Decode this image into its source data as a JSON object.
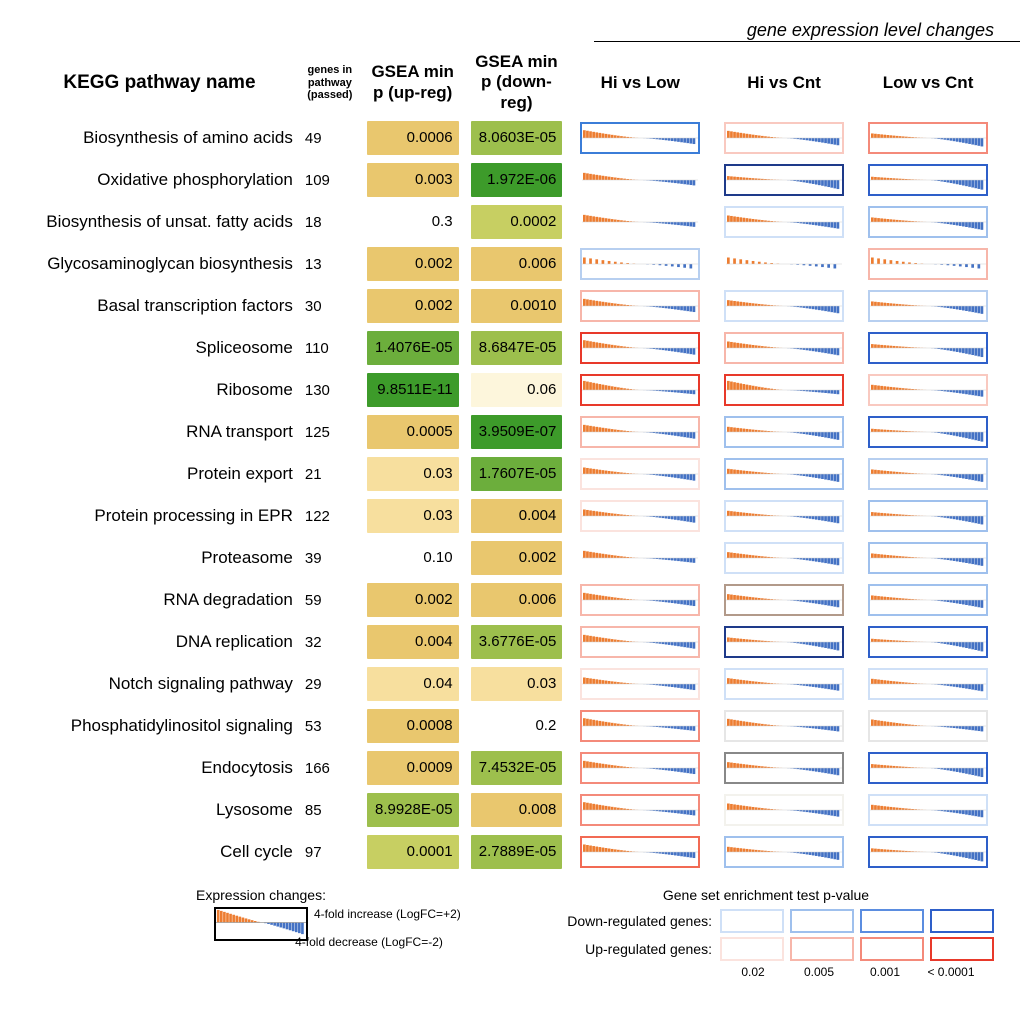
{
  "header_group": "gene expression level changes",
  "columns": {
    "name": "KEGG pathway name",
    "genes": "genes in pathway (passed)",
    "p_up": "GSEA min p (up-reg)",
    "p_down": "GSEA min p (down-reg)",
    "c1": "Hi vs Low",
    "c2": "Hi vs Cnt",
    "c3": "Low vs Cnt"
  },
  "heat_palette": {
    "0": "#ffffff",
    "1": "#fdf6dc",
    "2": "#f7df9e",
    "3": "#e9c76e",
    "4": "#c7cf62",
    "5": "#9dbf4d",
    "6": "#6cae3c",
    "7": "#3d9b2a"
  },
  "rows": [
    {
      "name": "Biosynthesis of amino acids",
      "genes": 49,
      "pu": "0.0006",
      "puH": 3,
      "pd": "8.0603E-05",
      "pdH": 5,
      "charts": [
        {
          "b": "#3b7dd8",
          "up": 0.6,
          "dn": 0.5
        },
        {
          "b": "#f9c9c0",
          "up": 0.55,
          "dn": 0.6
        },
        {
          "b": "#f48a7a",
          "up": 0.35,
          "dn": 0.7
        }
      ]
    },
    {
      "name": "Oxidative phosphorylation",
      "genes": 109,
      "pu": "0.003",
      "puH": 3,
      "pd": "1.972E-06",
      "pdH": 7,
      "charts": [
        {
          "b": "#fdece8",
          "up": 0.55,
          "dn": 0.45,
          "nobox": true
        },
        {
          "b": "#1e3a8a",
          "up": 0.3,
          "dn": 0.75
        },
        {
          "b": "#2e5fc9",
          "up": 0.25,
          "dn": 0.8
        }
      ]
    },
    {
      "name": "Biosynthesis of unsat. fatty acids",
      "genes": 18,
      "pu": "0.3",
      "puH": 0,
      "pd": "0.0002",
      "pdH": 4,
      "charts": [
        {
          "b": "#fdece8",
          "up": 0.55,
          "dn": 0.4,
          "nobox": true
        },
        {
          "b": "#cfe0f7",
          "up": 0.5,
          "dn": 0.55
        },
        {
          "b": "#9fc0ed",
          "up": 0.35,
          "dn": 0.65
        }
      ]
    },
    {
      "name": "Glycosaminoglycan biosynthesis",
      "genes": 13,
      "pu": "0.002",
      "puH": 3,
      "pd": "0.006",
      "pdH": 3,
      "charts": [
        {
          "b": "#b7cff0",
          "up": 0.5,
          "dn": 0.4,
          "dash": true
        },
        {
          "b": "#fdece8",
          "up": 0.5,
          "dn": 0.4,
          "dash": true,
          "nobox": true
        },
        {
          "b": "#f7b6aa",
          "up": 0.5,
          "dn": 0.4,
          "dash": true
        }
      ]
    },
    {
      "name": "Basal transcription factors",
      "genes": 30,
      "pu": "0.002",
      "puH": 3,
      "pd": "0.0010",
      "pdH": 3,
      "charts": [
        {
          "b": "#f7b6aa",
          "up": 0.55,
          "dn": 0.5
        },
        {
          "b": "#cfe0f7",
          "up": 0.45,
          "dn": 0.6
        },
        {
          "b": "#b7cff0",
          "up": 0.35,
          "dn": 0.65
        }
      ]
    },
    {
      "name": "Spliceosome",
      "genes": 110,
      "pu": "1.4076E-05",
      "puH": 6,
      "pd": "8.6847E-05",
      "pdH": 5,
      "charts": [
        {
          "b": "#e8392a",
          "up": 0.6,
          "dn": 0.55
        },
        {
          "b": "#f7b6aa",
          "up": 0.5,
          "dn": 0.6
        },
        {
          "b": "#2e5fc9",
          "up": 0.3,
          "dn": 0.75
        }
      ]
    },
    {
      "name": "Ribosome",
      "genes": 130,
      "pu": "9.8511E-11",
      "puH": 7,
      "pd": "0.06",
      "pdH": 1,
      "charts": [
        {
          "b": "#e8392a",
          "up": 0.7,
          "dn": 0.35
        },
        {
          "b": "#e8392a",
          "up": 0.7,
          "dn": 0.35
        },
        {
          "b": "#f9c9c0",
          "up": 0.4,
          "dn": 0.55
        }
      ]
    },
    {
      "name": "RNA transport",
      "genes": 125,
      "pu": "0.0005",
      "puH": 3,
      "pd": "3.9509E-07",
      "pdH": 7,
      "charts": [
        {
          "b": "#f7b6aa",
          "up": 0.55,
          "dn": 0.55
        },
        {
          "b": "#9fc0ed",
          "up": 0.4,
          "dn": 0.65
        },
        {
          "b": "#2e5fc9",
          "up": 0.25,
          "dn": 0.8
        }
      ]
    },
    {
      "name": "Protein export",
      "genes": 21,
      "pu": "0.03",
      "puH": 2,
      "pd": "1.7607E-05",
      "pdH": 6,
      "charts": [
        {
          "b": "#fbe3de",
          "up": 0.5,
          "dn": 0.55
        },
        {
          "b": "#9fc0ed",
          "up": 0.4,
          "dn": 0.65
        },
        {
          "b": "#b7cff0",
          "up": 0.35,
          "dn": 0.65
        }
      ]
    },
    {
      "name": "Protein processing in EPR",
      "genes": 122,
      "pu": "0.03",
      "puH": 2,
      "pd": "0.004",
      "pdH": 3,
      "charts": [
        {
          "b": "#fbe3de",
          "up": 0.5,
          "dn": 0.55
        },
        {
          "b": "#cfe0f7",
          "up": 0.4,
          "dn": 0.6
        },
        {
          "b": "#9fc0ed",
          "up": 0.3,
          "dn": 0.7
        }
      ]
    },
    {
      "name": "Proteasome",
      "genes": 39,
      "pu": "0.10",
      "puH": 0,
      "pd": "0.002",
      "pdH": 3,
      "charts": [
        {
          "b": "#fdece8",
          "up": 0.55,
          "dn": 0.4,
          "nobox": true
        },
        {
          "b": "#cfe0f7",
          "up": 0.45,
          "dn": 0.6
        },
        {
          "b": "#9fc0ed",
          "up": 0.35,
          "dn": 0.65
        }
      ]
    },
    {
      "name": "RNA degradation",
      "genes": 59,
      "pu": "0.002",
      "puH": 3,
      "pd": "0.006",
      "pdH": 3,
      "charts": [
        {
          "b": "#f7b6aa",
          "up": 0.55,
          "dn": 0.5
        },
        {
          "b": "#b29a8a",
          "up": 0.45,
          "dn": 0.6
        },
        {
          "b": "#9fc0ed",
          "up": 0.35,
          "dn": 0.65
        }
      ]
    },
    {
      "name": "DNA replication",
      "genes": 32,
      "pu": "0.004",
      "puH": 3,
      "pd": "3.6776E-05",
      "pdH": 5,
      "charts": [
        {
          "b": "#f7b6aa",
          "up": 0.55,
          "dn": 0.55
        },
        {
          "b": "#1e3a8a",
          "up": 0.35,
          "dn": 0.7
        },
        {
          "b": "#2e5fc9",
          "up": 0.25,
          "dn": 0.78
        }
      ]
    },
    {
      "name": "Notch signaling pathway",
      "genes": 29,
      "pu": "0.04",
      "puH": 2,
      "pd": "0.03",
      "pdH": 2,
      "charts": [
        {
          "b": "#fbe3de",
          "up": 0.5,
          "dn": 0.5
        },
        {
          "b": "#cfe0f7",
          "up": 0.45,
          "dn": 0.55
        },
        {
          "b": "#cfe0f7",
          "up": 0.4,
          "dn": 0.6
        }
      ]
    },
    {
      "name": "Phosphatidylinositol signaling",
      "genes": 53,
      "pu": "0.0008",
      "puH": 3,
      "pd": "0.2",
      "pdH": 0,
      "charts": [
        {
          "b": "#f48a7a",
          "up": 0.6,
          "dn": 0.4
        },
        {
          "b": "#e6e6e6",
          "up": 0.55,
          "dn": 0.45
        },
        {
          "b": "#e6e6e6",
          "up": 0.5,
          "dn": 0.45
        }
      ]
    },
    {
      "name": "Endocytosis",
      "genes": 166,
      "pu": "0.0009",
      "puH": 3,
      "pd": "7.4532E-05",
      "pdH": 5,
      "charts": [
        {
          "b": "#f48a7a",
          "up": 0.55,
          "dn": 0.5
        },
        {
          "b": "#888888",
          "up": 0.45,
          "dn": 0.6
        },
        {
          "b": "#2e5fc9",
          "up": 0.3,
          "dn": 0.75
        }
      ]
    },
    {
      "name": "Lysosome",
      "genes": 85,
      "pu": "8.9928E-05",
      "puH": 5,
      "pd": "0.008",
      "pdH": 3,
      "charts": [
        {
          "b": "#f48a7a",
          "up": 0.6,
          "dn": 0.45
        },
        {
          "b": "#f3f2ed",
          "up": 0.5,
          "dn": 0.55
        },
        {
          "b": "#cfe0f7",
          "up": 0.4,
          "dn": 0.6
        }
      ]
    },
    {
      "name": "Cell cycle",
      "genes": 97,
      "pu": "0.0001",
      "puH": 4,
      "pd": "2.7889E-05",
      "pdH": 5,
      "charts": [
        {
          "b": "#f26a54",
          "up": 0.58,
          "dn": 0.5
        },
        {
          "b": "#9fc0ed",
          "up": 0.4,
          "dn": 0.65
        },
        {
          "b": "#2e5fc9",
          "up": 0.28,
          "dn": 0.78
        }
      ]
    }
  ],
  "legend": {
    "left_title": "Expression changes:",
    "inc": "4-fold increase (LogFC=+2)",
    "dec": "4-fold decrease (LogFC=-2)",
    "right_title": "Gene set enrichment test p-value",
    "down_lbl": "Down-regulated genes:",
    "up_lbl": "Up-regulated genes:",
    "ticks": [
      "0.02",
      "0.005",
      "0.001",
      "< 0.0001"
    ],
    "blue_grad": [
      "#cfe0f7",
      "#9fc0ed",
      "#5b8de0",
      "#2e5fc9"
    ],
    "red_grad": [
      "#fbe3de",
      "#f7b6aa",
      "#f48a7a",
      "#e8392a"
    ]
  },
  "colors": {
    "orange": "#ed7d31",
    "blue": "#4472c4"
  }
}
